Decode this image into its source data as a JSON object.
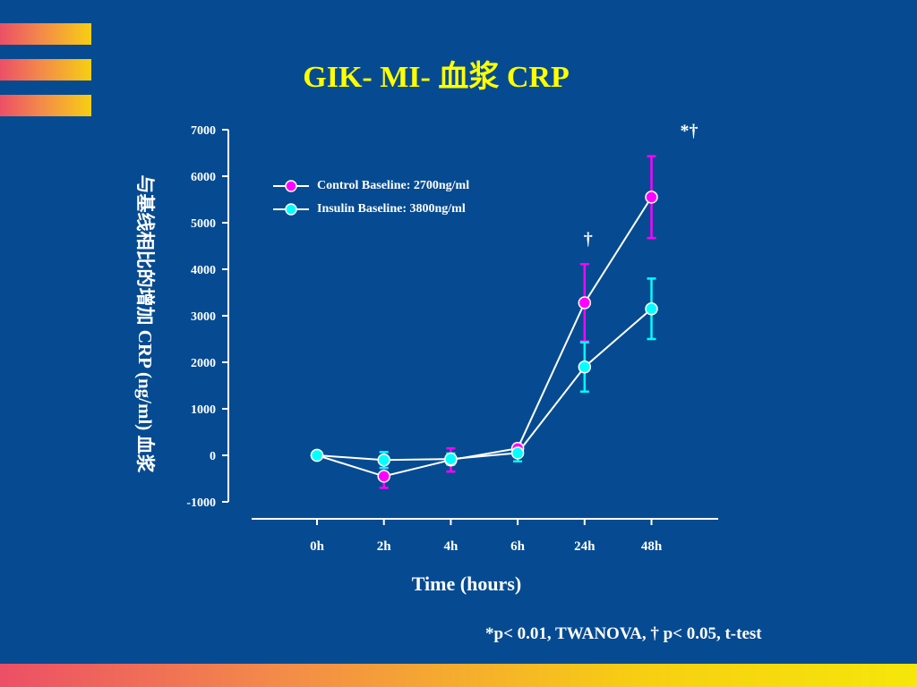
{
  "slide": {
    "title": "GIK- MI- 血浆 CRP",
    "footnote": "*p< 0.01, TWANOVA, † p< 0.05, t-test",
    "background_color": "#064b91",
    "accent_colors": [
      "#ec4f66",
      "#f7cf12"
    ]
  },
  "chart_data": {
    "type": "line",
    "title": "GIK- MI- 血浆 CRP",
    "ylabel": "与基线相比的增加 CRP (ng/ml) 血浆",
    "xlabel": "Time (hours)",
    "categories": [
      "0h",
      "2h",
      "4h",
      "6h",
      "24h",
      "48h"
    ],
    "ylim": [
      -1000,
      7000
    ],
    "yticks": [
      -1000,
      0,
      1000,
      2000,
      3000,
      4000,
      5000,
      6000,
      7000
    ],
    "grid": false,
    "legend_position": "top-left",
    "series": [
      {
        "name": "Control Baseline: 2700ng/ml",
        "color": "#ff00ff",
        "values": [
          0,
          -450,
          -100,
          150,
          3280,
          5550
        ],
        "error": [
          0,
          250,
          250,
          100,
          830,
          880
        ]
      },
      {
        "name": "Insulin Baseline: 3800ng/ml",
        "color": "#00ffff",
        "values": [
          0,
          -100,
          -80,
          50,
          1900,
          3150
        ],
        "error": [
          0,
          170,
          120,
          180,
          530,
          650
        ]
      }
    ],
    "annotations": [
      {
        "category": "24h",
        "text": "†"
      },
      {
        "category": "48h",
        "text": "*†"
      }
    ]
  }
}
